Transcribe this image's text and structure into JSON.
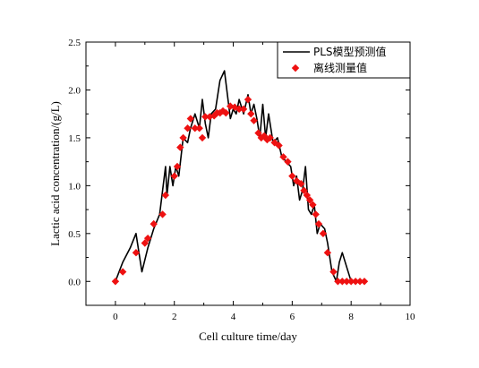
{
  "chart_data": {
    "type": "line",
    "title": "",
    "xlabel": "Cell culture time/day",
    "ylabel": "Lactic acid concentration/(g/L)",
    "xlim": [
      -1,
      10
    ],
    "ylim": [
      -0.25,
      2.5
    ],
    "xticks": [
      "0",
      "2",
      "4",
      "6",
      "8",
      "10"
    ],
    "yticks": [
      "0.0",
      "0.5",
      "1.0",
      "1.5",
      "2.0",
      "2.5"
    ],
    "grid": false,
    "legend_position": "top-right",
    "series": [
      {
        "name": "PLS模型预测值",
        "style": "line",
        "color": "#000000",
        "x": [
          0,
          0.25,
          0.5,
          0.7,
          0.9,
          1.1,
          1.3,
          1.5,
          1.7,
          1.75,
          1.85,
          1.95,
          2.05,
          2.15,
          2.3,
          2.45,
          2.55,
          2.7,
          2.85,
          2.95,
          3.05,
          3.15,
          3.25,
          3.4,
          3.55,
          3.7,
          3.8,
          3.9,
          4.0,
          4.1,
          4.2,
          4.35,
          4.5,
          4.6,
          4.7,
          4.8,
          4.9,
          5.0,
          5.1,
          5.2,
          5.35,
          5.5,
          5.65,
          5.8,
          5.95,
          6.05,
          6.15,
          6.25,
          6.35,
          6.45,
          6.55,
          6.65,
          6.75,
          6.85,
          6.95,
          7.1,
          7.2,
          7.35,
          7.5,
          7.6,
          7.7,
          7.85,
          8.0,
          8.1,
          8.2
        ],
        "y": [
          0.0,
          0.2,
          0.35,
          0.5,
          0.1,
          0.35,
          0.55,
          0.7,
          1.2,
          0.9,
          1.2,
          1.0,
          1.2,
          1.1,
          1.5,
          1.45,
          1.6,
          1.75,
          1.6,
          1.9,
          1.65,
          1.5,
          1.75,
          1.8,
          2.1,
          2.2,
          1.95,
          1.7,
          1.8,
          1.75,
          1.9,
          1.75,
          1.95,
          1.75,
          1.85,
          1.7,
          1.5,
          1.85,
          1.5,
          1.75,
          1.45,
          1.5,
          1.3,
          1.25,
          1.2,
          1.0,
          1.1,
          0.85,
          0.95,
          1.2,
          0.75,
          0.7,
          0.8,
          0.5,
          0.6,
          0.55,
          0.4,
          0.1,
          0.0,
          0.2,
          0.3,
          0.15,
          0.0,
          0.0,
          0.0
        ]
      },
      {
        "name": "离线测量值",
        "style": "scatter",
        "color": "#ee1111",
        "x": [
          0.0,
          0.25,
          0.7,
          1.0,
          1.1,
          1.3,
          1.6,
          1.7,
          2.0,
          2.1,
          2.2,
          2.3,
          2.45,
          2.55,
          2.7,
          2.85,
          2.95,
          3.05,
          3.2,
          3.35,
          3.45,
          3.55,
          3.65,
          3.75,
          3.9,
          4.05,
          4.2,
          4.35,
          4.5,
          4.6,
          4.7,
          4.85,
          4.95,
          5.05,
          5.15,
          5.25,
          5.4,
          5.55,
          5.7,
          5.85,
          6.0,
          6.15,
          6.3,
          6.4,
          6.5,
          6.6,
          6.7,
          6.8,
          6.9,
          7.05,
          7.2,
          7.4,
          7.55,
          7.7,
          7.85,
          8.0,
          8.15,
          8.3,
          8.45
        ],
        "y": [
          0.0,
          0.1,
          0.3,
          0.4,
          0.45,
          0.6,
          0.7,
          0.9,
          1.1,
          1.2,
          1.4,
          1.5,
          1.6,
          1.7,
          1.6,
          1.6,
          1.5,
          1.72,
          1.72,
          1.73,
          1.76,
          1.76,
          1.78,
          1.76,
          1.83,
          1.82,
          1.8,
          1.8,
          1.9,
          1.75,
          1.68,
          1.55,
          1.5,
          1.52,
          1.48,
          1.5,
          1.45,
          1.42,
          1.3,
          1.25,
          1.1,
          1.05,
          1.02,
          0.95,
          0.9,
          0.85,
          0.8,
          0.7,
          0.6,
          0.5,
          0.3,
          0.1,
          0.0,
          0.0,
          0.0,
          0.0,
          0.0,
          0.0,
          0.0
        ]
      }
    ]
  }
}
